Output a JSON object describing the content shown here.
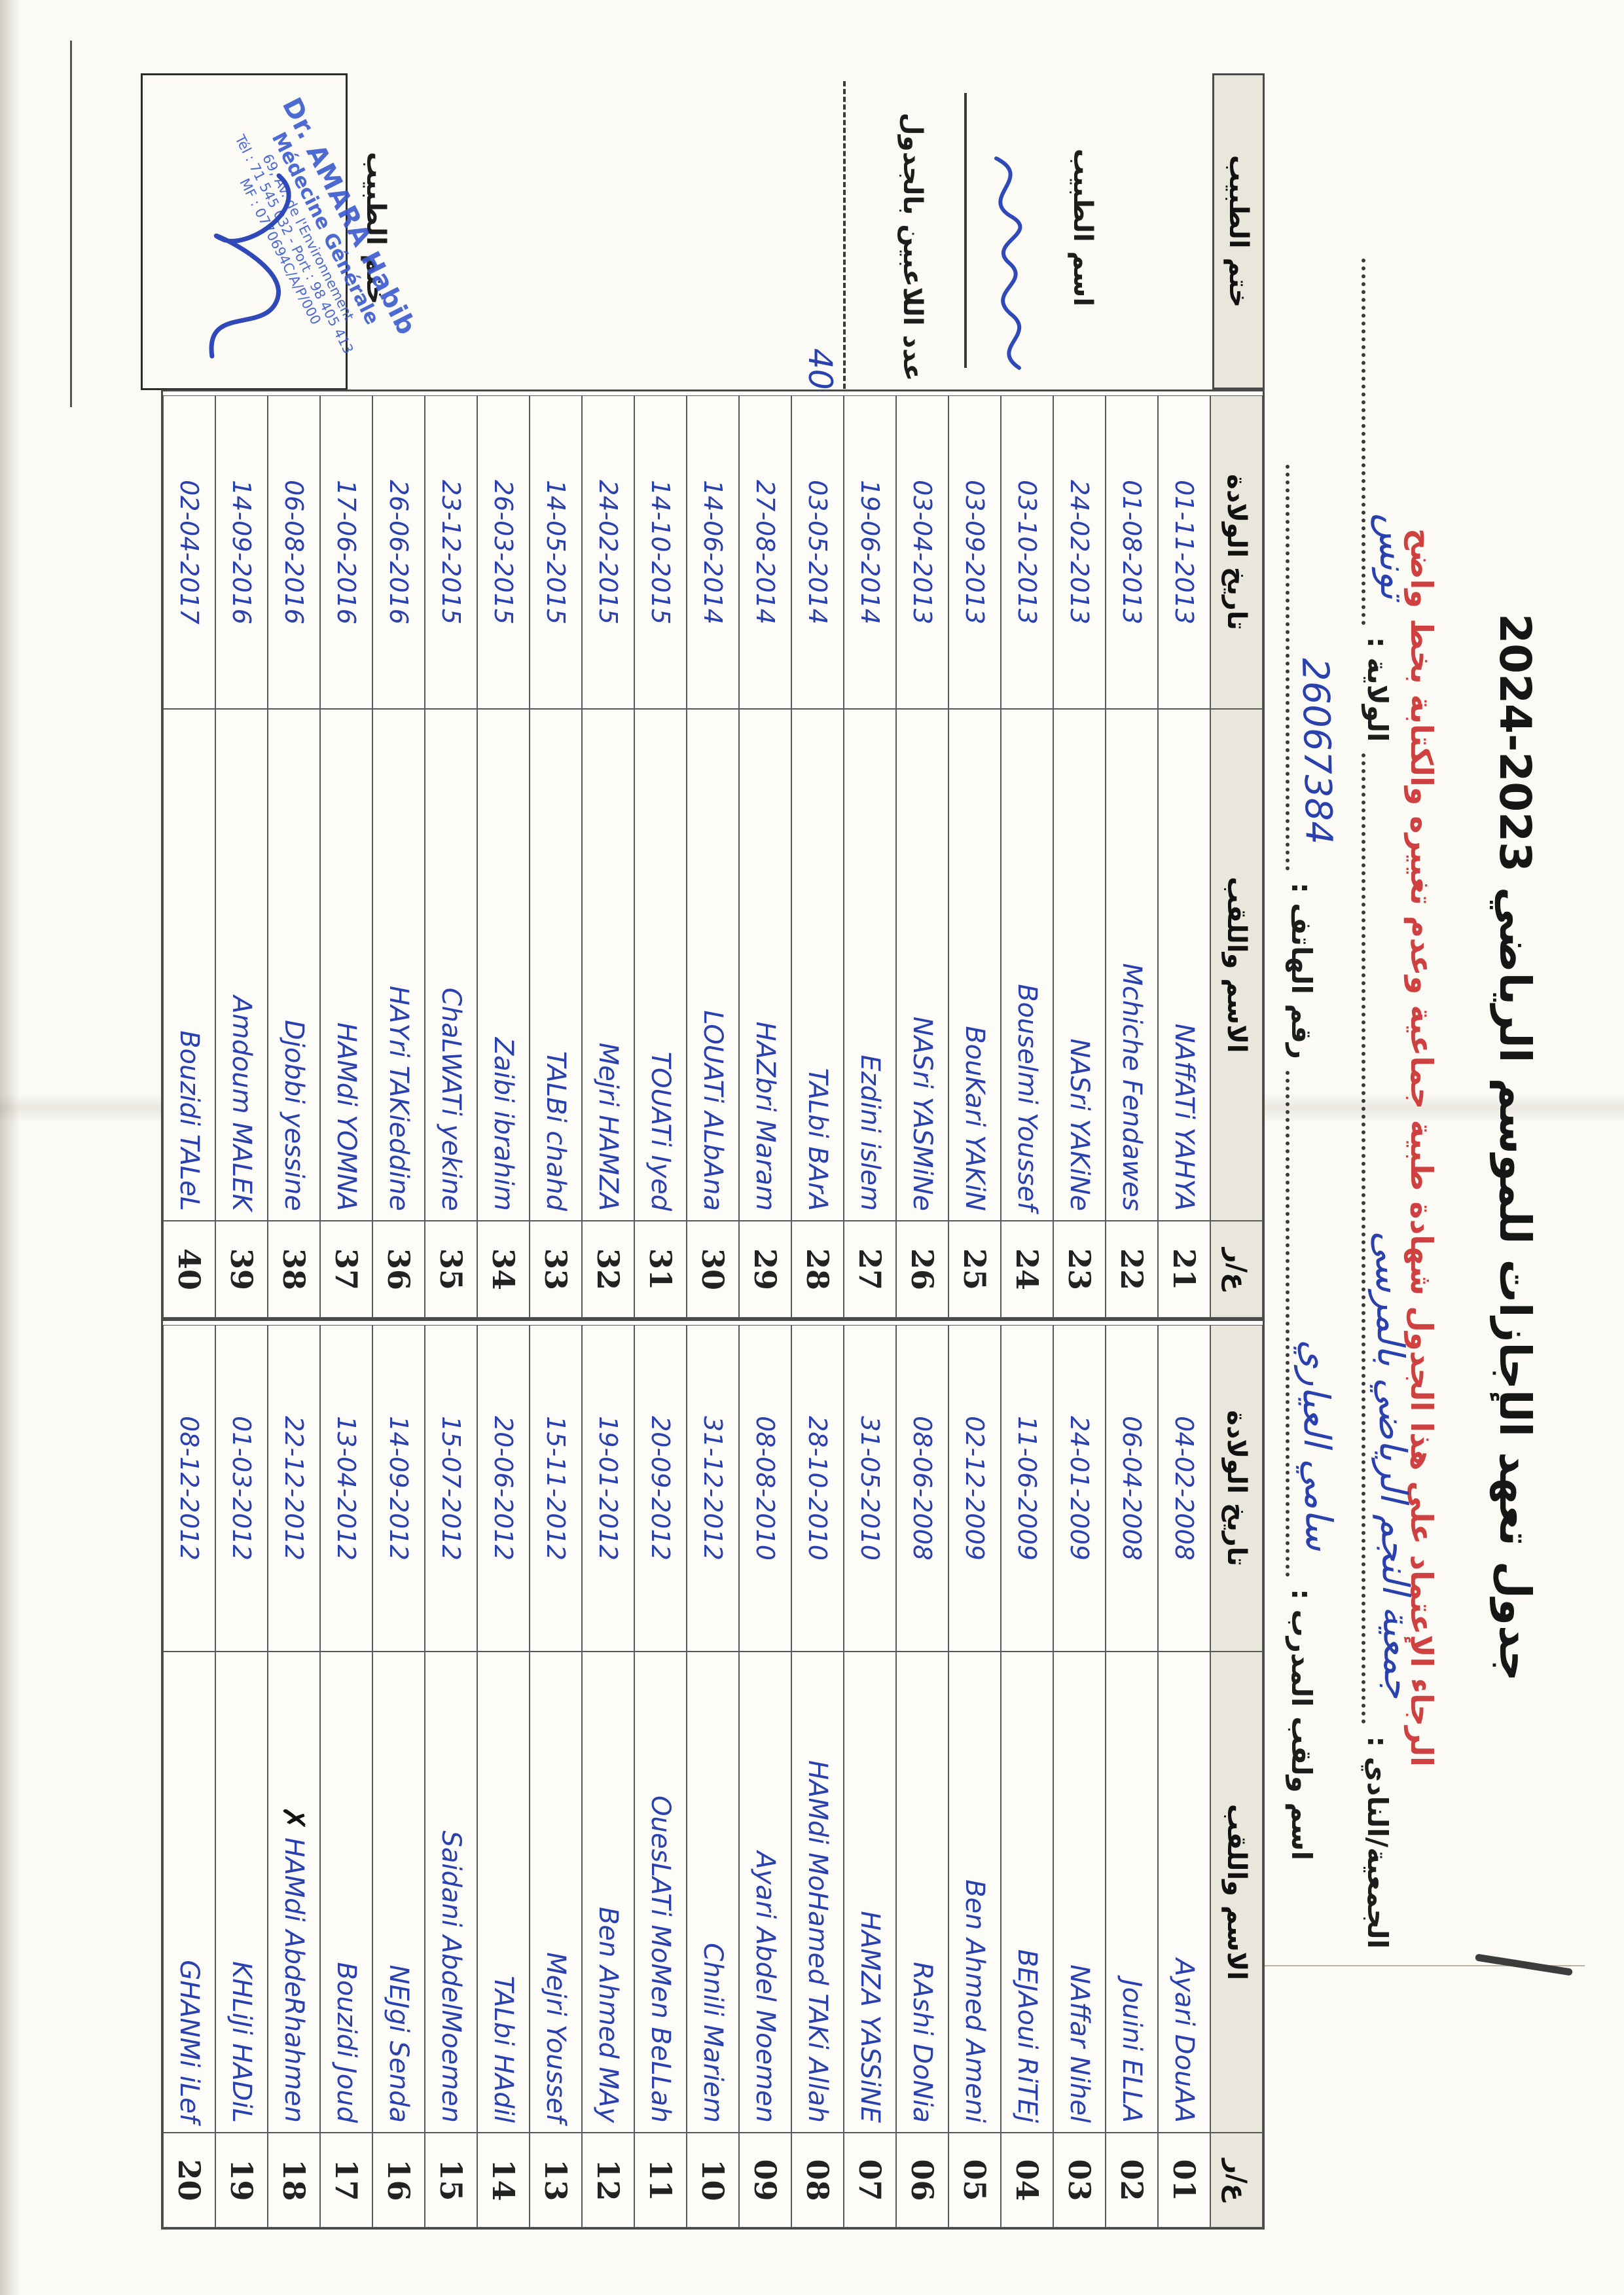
{
  "season_title": "جدول تعهد الإجازات للموسم الرياضي 2023-2024",
  "warning_red": "الرجاء الإعتماد على هذا الجدول شهادة طبية جماعية وعدم تغييره والكتابة بخط واضح",
  "form": {
    "association_label": "الجمعية/النادي :",
    "association_value": "جمعية النجم الرياضي بالمرسى",
    "wilaya_label": "الولاية :",
    "wilaya_value": "تونس",
    "coach_label": "اسم ولقب المدرب :",
    "coach_value": "سامي العياري",
    "phone_label": "رقم الهاتف :",
    "phone_value": "26067384"
  },
  "doctor_panel": {
    "header_label": "ختم الطبيب",
    "doctor_name_label": "اسم الطبيب",
    "players_count_label": "عدد اللاعبين بالجدول",
    "players_count_value": "40",
    "stamp_field_label": "ختم الطبيب",
    "stamp": {
      "line1": "Dr. AMARA Habib",
      "line2": "Médecine Générale",
      "line3": "69, Av. de l'Environnement",
      "line4": "Tél : 71 545 032 - Port : 98 405 413",
      "line5": "MF : 0770694C/A/P/000"
    }
  },
  "table_headers": {
    "num_label": "ع/ر",
    "name_label": "الاسم واللقب",
    "dob_label": "تاريخ الولادة"
  },
  "table_b": {
    "rows": [
      {
        "num": "01",
        "name": "Ayari DouAA",
        "dob": "04-02-2008"
      },
      {
        "num": "02",
        "name": "Jouini ELLA",
        "dob": "06-04-2008"
      },
      {
        "num": "03",
        "name": "NAffar Nihel",
        "dob": "24-01-2009"
      },
      {
        "num": "04",
        "name": "BEJAoui RiTEj",
        "dob": "11-06-2009"
      },
      {
        "num": "05",
        "name": "Ben Ahmed Ameni",
        "dob": "02-12-2009"
      },
      {
        "num": "06",
        "name": "RAshi DoNia",
        "dob": "08-06-2008"
      },
      {
        "num": "07",
        "name": "HAMZA YASSiNE",
        "dob": "31-05-2010"
      },
      {
        "num": "08",
        "name": "HAMdi MoHamed TAKi Allah",
        "dob": "28-10-2010"
      },
      {
        "num": "09",
        "name": "Ayari Abdel Moemen",
        "dob": "08-08-2010"
      },
      {
        "num": "10",
        "name": "Chnili Mariem",
        "dob": "31-12-2012"
      },
      {
        "num": "11",
        "name": "OuesLATi MoMen BeLLah",
        "dob": "20-09-2012"
      },
      {
        "num": "12",
        "name": "Ben Ahmed MAy",
        "dob": "19-01-2012"
      },
      {
        "num": "13",
        "name": "Mejri Youssef",
        "dob": "15-11-2012"
      },
      {
        "num": "14",
        "name": "TALbi HAdil",
        "dob": "20-06-2012"
      },
      {
        "num": "15",
        "name": "Saidani AbdelMoemen",
        "dob": "15-07-2012"
      },
      {
        "num": "16",
        "name": "NEJgi Senda",
        "dob": "14-09-2012"
      },
      {
        "num": "17",
        "name": "Bouzidi Joud",
        "dob": "13-04-2012"
      },
      {
        "num": "18",
        "name": "HAMdi AbdeRhahmen",
        "mark": "✗",
        "dob": "22-12-2012"
      },
      {
        "num": "19",
        "name": "KHLiJi HADiL",
        "dob": "01-03-2012"
      },
      {
        "num": "20",
        "name": "GHANMi iLef",
        "dob": "08-12-2012"
      }
    ]
  },
  "table_a": {
    "rows": [
      {
        "num": "21",
        "name": "NAffATi YAHYA",
        "dob": "01-11-2013"
      },
      {
        "num": "22",
        "name": "Mchiche Fendawes",
        "dob": "01-08-2013"
      },
      {
        "num": "23",
        "name": "NASri YAKiNe",
        "dob": "24-02-2013"
      },
      {
        "num": "24",
        "name": "Bouselmi Youssef",
        "dob": "03-10-2013"
      },
      {
        "num": "25",
        "name": "BouKari YAKiN",
        "dob": "03-09-2013"
      },
      {
        "num": "26",
        "name": "NASri YASMiNe",
        "dob": "03-04-2013"
      },
      {
        "num": "27",
        "name": "Ezdini islem",
        "dob": "19-06-2014"
      },
      {
        "num": "28",
        "name": "TALbi BArA",
        "dob": "03-05-2014"
      },
      {
        "num": "29",
        "name": "HAZbri Maram",
        "dob": "27-08-2014"
      },
      {
        "num": "30",
        "name": "LOUATi ALbAna",
        "dob": "14-06-2014"
      },
      {
        "num": "31",
        "name": "TOUATi Iyed",
        "dob": "14-10-2015"
      },
      {
        "num": "32",
        "name": "Mejri HAMZA",
        "dob": "24-02-2015"
      },
      {
        "num": "33",
        "name": "TALBi chahd",
        "dob": "14-05-2015"
      },
      {
        "num": "34",
        "name": "Zaibi ibrahim",
        "dob": "26-03-2015"
      },
      {
        "num": "35",
        "name": "ChaLWATi yekine",
        "dob": "23-12-2015"
      },
      {
        "num": "36",
        "name": "HAYri TAKieddine",
        "dob": "26-06-2016"
      },
      {
        "num": "37",
        "name": "HAMdi YOMNA",
        "dob": "17-06-2016"
      },
      {
        "num": "38",
        "name": "Djobbi yessine",
        "dob": "06-08-2016"
      },
      {
        "num": "39",
        "name": "Amdoum MALEK",
        "dob": "14-09-2016"
      },
      {
        "num": "40",
        "name": "Bouzidi TALeL",
        "dob": "02-04-2017"
      }
    ]
  }
}
